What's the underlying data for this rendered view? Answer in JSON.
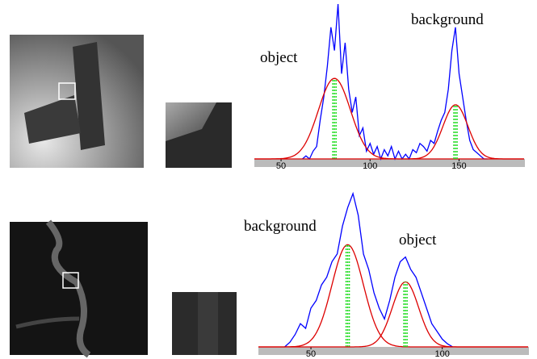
{
  "chart_data": [
    {
      "type": "line",
      "color": "#0000ff",
      "fit_color": "#dd0000",
      "mean_color": "#22dd22",
      "xlim": [
        35,
        187
      ],
      "ylim": [
        0,
        100
      ],
      "xticks": [
        50,
        100,
        150
      ],
      "annotations": [
        "object",
        "background"
      ],
      "x": [
        62,
        64,
        66,
        68,
        70,
        72,
        74,
        76,
        78,
        80,
        82,
        84,
        86,
        88,
        90,
        92,
        94,
        96,
        98,
        100,
        102,
        104,
        106,
        108,
        110,
        112,
        114,
        116,
        118,
        120,
        122,
        124,
        126,
        128,
        130,
        132,
        134,
        136,
        138,
        140,
        142,
        144,
        146,
        148,
        150,
        152,
        154,
        156,
        158,
        160,
        162,
        164,
        166
      ],
      "values": [
        0,
        2,
        0,
        5,
        8,
        25,
        40,
        60,
        85,
        70,
        100,
        55,
        75,
        45,
        30,
        40,
        15,
        20,
        5,
        10,
        3,
        8,
        0,
        6,
        2,
        8,
        0,
        5,
        0,
        3,
        0,
        6,
        4,
        10,
        8,
        5,
        12,
        10,
        18,
        25,
        30,
        45,
        70,
        85,
        55,
        40,
        25,
        12,
        6,
        4,
        2,
        0,
        0
      ],
      "fits": [
        {
          "mean": 80,
          "sd": 9,
          "peak": 52
        },
        {
          "mean": 148,
          "sd": 7,
          "peak": 35
        }
      ]
    },
    {
      "type": "line",
      "color": "#0000ff",
      "fit_color": "#dd0000",
      "mean_color": "#22dd22",
      "xlim": [
        30,
        133
      ],
      "ylim": [
        0,
        100
      ],
      "xticks": [
        50,
        100
      ],
      "annotations": [
        "background",
        "object"
      ],
      "x": [
        40,
        42,
        44,
        46,
        48,
        50,
        52,
        54,
        56,
        58,
        60,
        62,
        64,
        66,
        68,
        70,
        72,
        74,
        76,
        78,
        80,
        82,
        84,
        86,
        88,
        90,
        92,
        94,
        96,
        98,
        100,
        102,
        104
      ],
      "values": [
        0,
        3,
        8,
        15,
        12,
        25,
        30,
        40,
        45,
        55,
        60,
        78,
        90,
        99,
        85,
        60,
        50,
        35,
        25,
        18,
        30,
        45,
        55,
        58,
        50,
        45,
        35,
        25,
        15,
        10,
        5,
        2,
        0
      ],
      "fits": [
        {
          "mean": 64,
          "sd": 6,
          "peak": 66
        },
        {
          "mean": 86,
          "sd": 5,
          "peak": 42
        }
      ]
    }
  ]
}
